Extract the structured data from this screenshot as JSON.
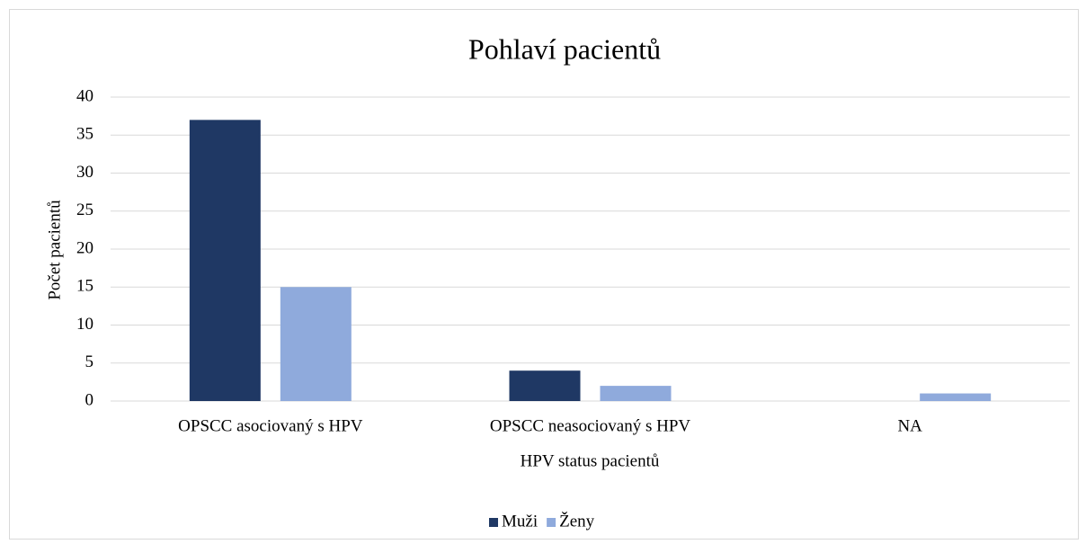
{
  "chart_data": {
    "type": "bar",
    "title": "Pohlaví pacientů",
    "x_label": "HPV status pacientů",
    "y_label": "Počet pacientů",
    "categories": [
      "OPSCC asociovaný s HPV",
      "OPSCC neasociovaný s HPV",
      "NA"
    ],
    "series": [
      {
        "name": "Muži",
        "color": "#1f3864",
        "values": [
          37,
          4,
          0
        ]
      },
      {
        "name": "Ženy",
        "color": "#8faadc",
        "values": [
          15,
          2,
          1
        ]
      }
    ],
    "ylim": [
      0,
      40
    ],
    "yticks": [
      0,
      5,
      10,
      15,
      20,
      25,
      30,
      35,
      40
    ],
    "grid": true,
    "legend": "bottom"
  }
}
